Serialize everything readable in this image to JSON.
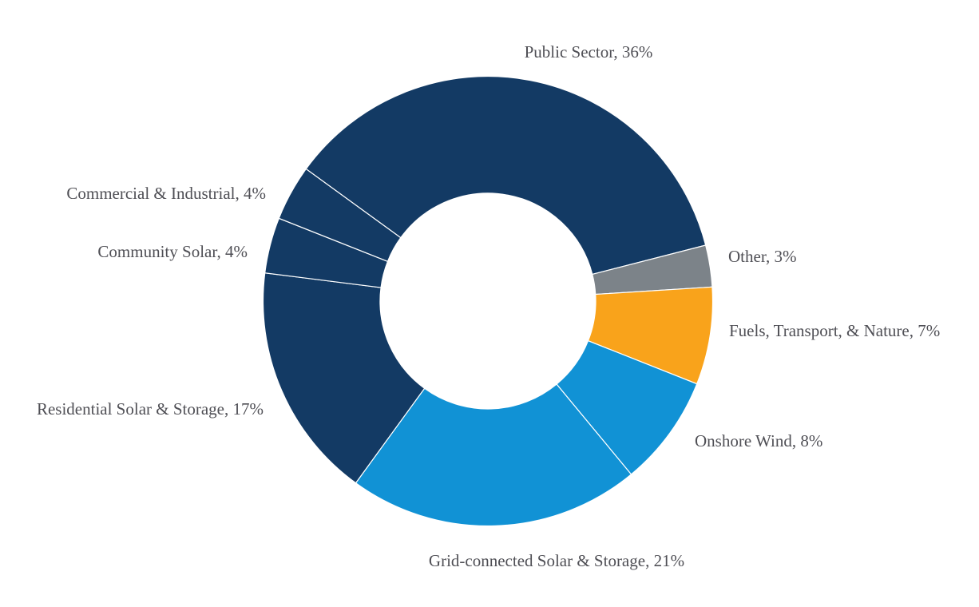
{
  "page": {
    "background_color": "#FFFFFF"
  },
  "chart_data": {
    "type": "pie",
    "subtype": "donut",
    "title": "",
    "unit": "%",
    "start_angle_deg": -54,
    "direction": "clockwise",
    "labels_outside": true,
    "legend_position": "none",
    "label_color": "#4F4F55",
    "slice_border_color": "#FFFFFF",
    "slices": [
      {
        "name": "Public Sector",
        "value": 36,
        "label": "Public Sector, 36%",
        "color": "#133A64"
      },
      {
        "name": "Other",
        "value": 3,
        "label": "Other, 3%",
        "color": "#7C8389"
      },
      {
        "name": "Fuels, Transport, & Nature",
        "value": 7,
        "label": "Fuels, Transport, & Nature, 7%",
        "color": "#F9A31B"
      },
      {
        "name": "Onshore Wind",
        "value": 8,
        "label": "Onshore Wind, 8%",
        "color": "#1192D5"
      },
      {
        "name": "Grid-connected Solar & Storage",
        "value": 21,
        "label": "Grid-connected Solar & Storage, 21%",
        "color": "#1192D5"
      },
      {
        "name": "Residential Solar & Storage",
        "value": 17,
        "label": "Residential Solar & Storage, 17%",
        "color": "#133A64"
      },
      {
        "name": "Community Solar",
        "value": 4,
        "label": "Community Solar, 4%",
        "color": "#133A64"
      },
      {
        "name": "Commercial & Industrial",
        "value": 4,
        "label": "Commercial & Industrial, 4%",
        "color": "#133A64"
      }
    ]
  }
}
